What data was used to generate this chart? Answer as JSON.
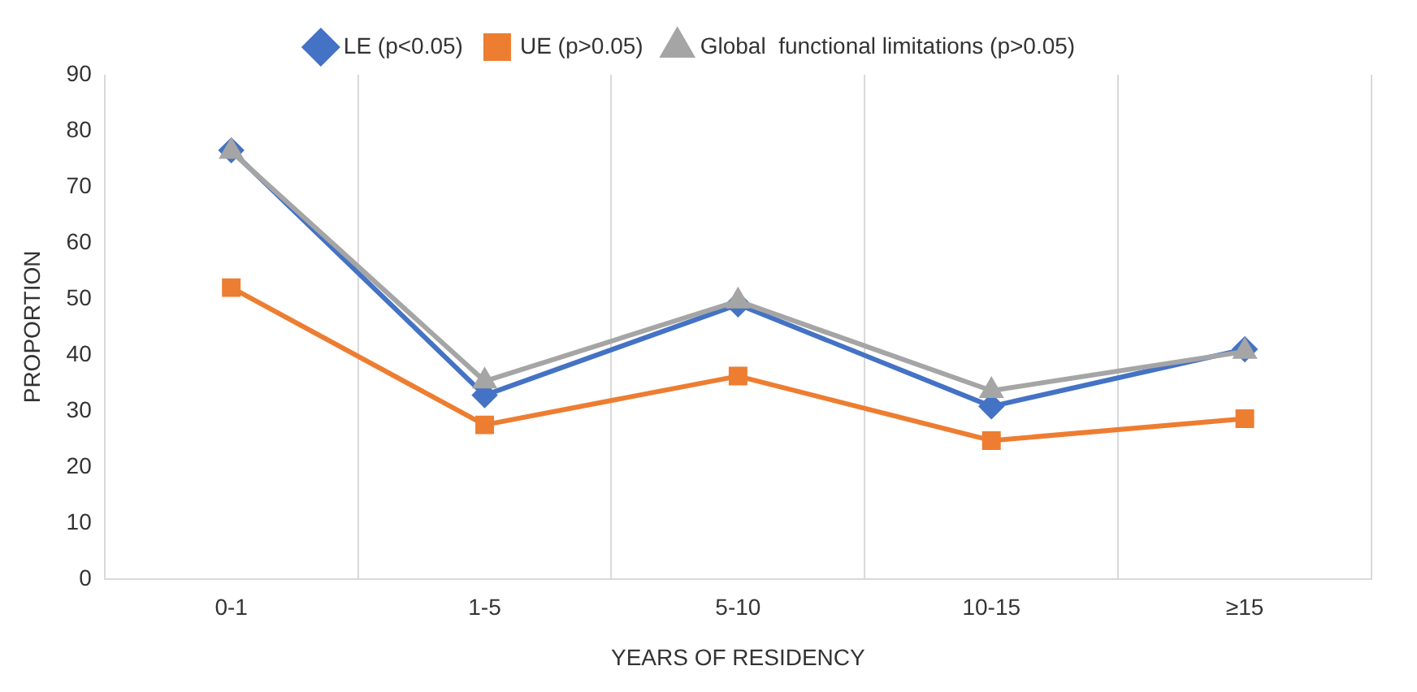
{
  "chart_data": {
    "type": "line",
    "xlabel": "YEARS OF RESIDENCY",
    "ylabel": "PROPORTION",
    "categories": [
      "0-1",
      "1-5",
      "5-10",
      "10-15",
      "≥15"
    ],
    "series": [
      {
        "name": "LE (p<0.05)",
        "color": "#4472c4",
        "marker": "diamond",
        "values": [
          76.5,
          32.8,
          49,
          30.8,
          41
        ]
      },
      {
        "name": "UE (p>0.05)",
        "color": "#ed7d31",
        "marker": "square",
        "values": [
          52,
          27.5,
          36.2,
          24.7,
          28.6
        ]
      },
      {
        "name": "Global  functional limitations (p>0.05)",
        "color": "#a5a5a5",
        "marker": "triangle",
        "values": [
          76.3,
          35.3,
          49.6,
          33.6,
          40.6
        ]
      }
    ],
    "ylim": [
      0,
      90
    ],
    "yticks": [
      0,
      10,
      20,
      30,
      40,
      50,
      60,
      70,
      80,
      90
    ],
    "grid": "x",
    "legend": "top",
    "line_style": "solid"
  }
}
